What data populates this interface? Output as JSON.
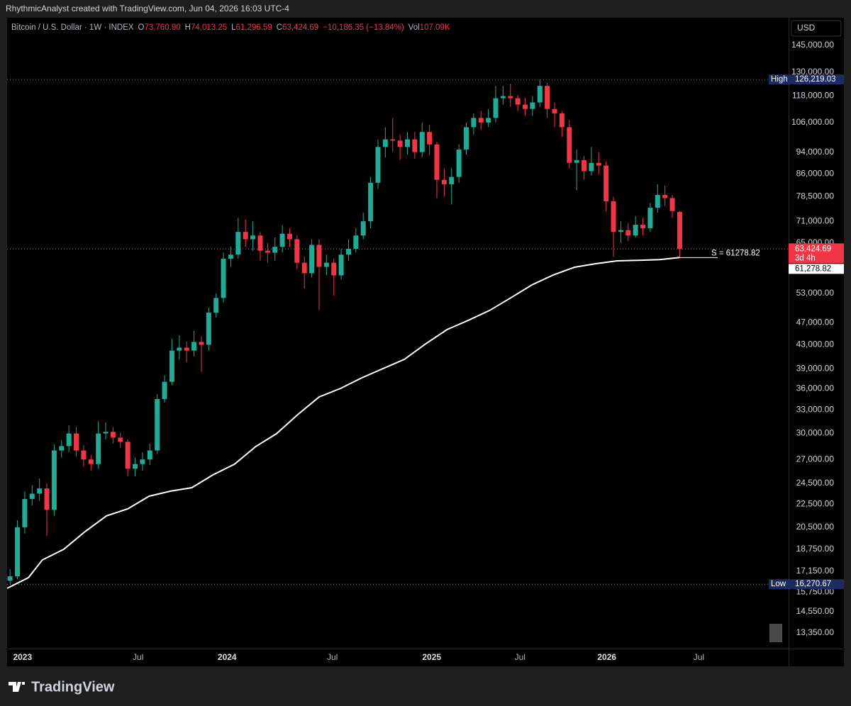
{
  "header": {
    "caption": "RhythmicAnalyst created with TradingView.com, Jun 04, 2026 16:03 UTC-4"
  },
  "legend": {
    "symbol": "Bitcoin / U.S. Dollar · 1W · INDEX",
    "open": {
      "label": "O",
      "value": "73,760.90"
    },
    "high": {
      "label": "H",
      "value": "74,013.25"
    },
    "low": {
      "label": "L",
      "value": "61,296.59"
    },
    "close": {
      "label": "C",
      "value": "63,424.69"
    },
    "change": "−10,186.35 (−13.84%)",
    "volume": {
      "label": "Vol",
      "value": "107.09K"
    }
  },
  "toolbar": {
    "currency": "USD"
  },
  "footer": {
    "brand": "TradingView"
  },
  "chart_data": {
    "type": "candlestick",
    "log_scale": true,
    "ylim": [
      12530,
      162200
    ],
    "yticks": [
      {
        "value": 145000,
        "label": "145,000.00"
      },
      {
        "value": 130000,
        "label": "130,000.00"
      },
      {
        "value": 118000,
        "label": "118,000.00"
      },
      {
        "value": 106000,
        "label": "106,000.00"
      },
      {
        "value": 94000,
        "label": "94,000.00"
      },
      {
        "value": 86000,
        "label": "86,000.00"
      },
      {
        "value": 78500,
        "label": "78,500.00"
      },
      {
        "value": 71000,
        "label": "71,000.00"
      },
      {
        "value": 65000,
        "label": "65,000.00"
      },
      {
        "value": 53000,
        "label": "53,000.00"
      },
      {
        "value": 47000,
        "label": "47,000.00"
      },
      {
        "value": 43000,
        "label": "43,000.00"
      },
      {
        "value": 39000,
        "label": "39,000.00"
      },
      {
        "value": 36000,
        "label": "36,000.00"
      },
      {
        "value": 33000,
        "label": "33,000.00"
      },
      {
        "value": 30000,
        "label": "30,000.00"
      },
      {
        "value": 27000,
        "label": "27,000.00"
      },
      {
        "value": 24500,
        "label": "24,500.00"
      },
      {
        "value": 22500,
        "label": "22,500.00"
      },
      {
        "value": 20500,
        "label": "20,500.00"
      },
      {
        "value": 18750,
        "label": "18,750.00"
      },
      {
        "value": 17150,
        "label": "17,150.00"
      },
      {
        "value": 15750,
        "label": "15,750.00"
      },
      {
        "value": 14550,
        "label": "14,550.00"
      },
      {
        "value": 13350,
        "label": "13,350.00"
      }
    ],
    "xlim": [
      -0.4,
      105.8
    ],
    "xticks": [
      {
        "value": 1.7,
        "label": "2023"
      },
      {
        "value": 17.4,
        "label": "Jul"
      },
      {
        "value": 29.5,
        "label": "2024"
      },
      {
        "value": 43.8,
        "label": "Jul"
      },
      {
        "value": 57.3,
        "label": "2025"
      },
      {
        "value": 69.3,
        "label": "Jul"
      },
      {
        "value": 81.1,
        "label": "2026"
      },
      {
        "value": 93.6,
        "label": "Jul"
      }
    ],
    "up_color": "#22ab94",
    "down_color": "#f23645",
    "candles": {
      "open": [
        16500,
        16800,
        20500,
        23000,
        23500,
        24000,
        22000,
        28000,
        28500,
        30000,
        28000,
        27000,
        26500,
        30000,
        30200,
        29500,
        29000,
        26000,
        26500,
        27000,
        28000,
        34500,
        37000,
        42000,
        42500,
        42000,
        43500,
        43000,
        49000,
        52000,
        61000,
        62000,
        68000,
        66000,
        67000,
        63000,
        62500,
        64000,
        67500,
        66000,
        60000,
        57500,
        64500,
        59000,
        60000,
        57000,
        62000,
        63500,
        67000,
        71000,
        83000,
        96000,
        99000,
        98500,
        96000,
        99000,
        94000,
        102000,
        97000,
        84000,
        82500,
        85000,
        95000,
        104000,
        108000,
        106000,
        108000,
        117000,
        118000,
        117000,
        114000,
        112000,
        115000,
        123000,
        112000,
        110000,
        104000,
        90000,
        91000,
        87000,
        90000,
        89000,
        77000,
        68000,
        68500,
        67000,
        70000,
        69000,
        75000,
        79000,
        78000,
        73760.9
      ],
      "high": [
        17300,
        21100,
        23700,
        24300,
        25000,
        24500,
        28700,
        29200,
        31000,
        30800,
        28600,
        27500,
        31500,
        31400,
        30800,
        30100,
        29300,
        27200,
        27800,
        28800,
        35200,
        38000,
        44000,
        44700,
        43600,
        45500,
        44500,
        50000,
        53000,
        62500,
        64000,
        72000,
        71500,
        71000,
        68000,
        65000,
        66500,
        70000,
        69000,
        67000,
        61500,
        66000,
        66000,
        62000,
        61000,
        63500,
        66000,
        69000,
        73500,
        85000,
        99000,
        104000,
        108000,
        101000,
        102000,
        102000,
        106000,
        105000,
        98000,
        88000,
        88000,
        97000,
        106000,
        110000,
        111000,
        112000,
        123000,
        123000,
        124000,
        118500,
        117000,
        118000,
        126219.03,
        124500,
        115000,
        111000,
        107000,
        95000,
        92500,
        96000,
        94000,
        90500,
        78500,
        71000,
        70500,
        72500,
        72000,
        76500,
        82500,
        82000,
        79000,
        74013.25
      ],
      "low": [
        16270.67,
        16600,
        20000,
        22400,
        22800,
        19800,
        21500,
        27200,
        27800,
        27300,
        26200,
        25800,
        26000,
        29300,
        28800,
        28300,
        25200,
        25200,
        25800,
        26400,
        27600,
        34000,
        36500,
        40500,
        40000,
        41000,
        38500,
        42000,
        48000,
        51000,
        59000,
        61000,
        64000,
        63000,
        60500,
        60000,
        60500,
        62500,
        64000,
        58500,
        54000,
        56500,
        49500,
        57000,
        52500,
        56000,
        60500,
        62500,
        66000,
        69000,
        81000,
        92000,
        94000,
        91000,
        93000,
        91500,
        92000,
        93000,
        78000,
        78500,
        76000,
        83000,
        93000,
        101000,
        103000,
        104000,
        106000,
        114000,
        113000,
        111000,
        109000,
        109000,
        113000,
        108000,
        104000,
        100000,
        88000,
        80500,
        84000,
        85500,
        86000,
        74000,
        61500,
        65000,
        65500,
        66500,
        67000,
        68000,
        73500,
        75500,
        72000,
        61296.59
      ],
      "close": [
        16800,
        20500,
        23000,
        23500,
        24000,
        22000,
        28000,
        28500,
        30000,
        28000,
        27000,
        26500,
        30000,
        30200,
        29500,
        29000,
        26000,
        26500,
        27000,
        28000,
        34500,
        37000,
        42000,
        42500,
        42000,
        43500,
        43000,
        49000,
        52000,
        61000,
        62000,
        68000,
        66000,
        67000,
        63000,
        62500,
        64000,
        67500,
        66000,
        60000,
        57500,
        64500,
        59000,
        60000,
        57000,
        62000,
        63500,
        67000,
        71000,
        83000,
        96000,
        99000,
        98500,
        96000,
        99000,
        94000,
        102000,
        97000,
        84000,
        82500,
        85000,
        95000,
        104000,
        108000,
        106000,
        108000,
        117000,
        118000,
        117000,
        114000,
        112000,
        115000,
        123000,
        112000,
        110000,
        104000,
        90000,
        91000,
        87000,
        90000,
        89000,
        77000,
        68000,
        68500,
        67000,
        70000,
        69000,
        75000,
        79000,
        78000,
        74000,
        63424.69
      ]
    },
    "sma": {
      "color": "#ffffff",
      "x": [
        -0.4,
        2.5,
        4.4,
        7.3,
        10.2,
        13.1,
        16,
        18.9,
        21.8,
        24.7,
        27.6,
        30.5,
        33.4,
        36.2,
        39.1,
        42,
        44.9,
        47.8,
        50.7,
        53.6,
        56.5,
        59.4,
        62.3,
        65.2,
        68.1,
        70.9,
        73.8,
        76.7,
        79.6,
        82.5,
        85.4,
        88.3,
        91
      ],
      "values": [
        16000,
        16710,
        17960,
        18750,
        20150,
        21470,
        22100,
        23260,
        23740,
        24080,
        25370,
        26480,
        28460,
        29970,
        32390,
        34800,
        36020,
        37610,
        39050,
        40540,
        43190,
        45750,
        47510,
        49460,
        52090,
        54830,
        57080,
        58920,
        59760,
        60460,
        60600,
        60750,
        61278.82
      ]
    },
    "markers": {
      "high": {
        "label": "High",
        "text": "126,219.03"
      },
      "low": {
        "label": "Low",
        "text": "16,270.67"
      },
      "last": {
        "text": "63,424.69",
        "countdown": "3d 4h"
      },
      "sma_label": "61,278.82",
      "annotation": "S =  61278.82"
    }
  }
}
